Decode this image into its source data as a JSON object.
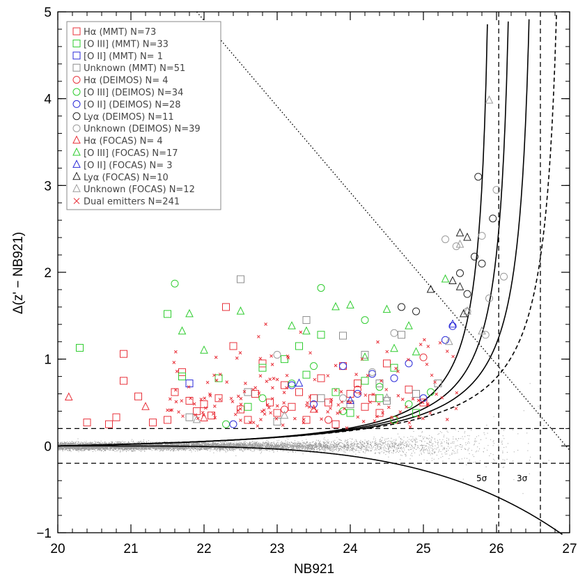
{
  "chart_data": {
    "type": "scatter",
    "xlabel": "NB921",
    "ylabel": "Δ(z' − NB921)",
    "xlim": [
      20,
      27
    ],
    "ylim": [
      -1,
      5
    ],
    "xticks": [
      "20",
      "21",
      "22",
      "23",
      "24",
      "25",
      "26",
      "27"
    ],
    "yticks": [
      "−1",
      "0",
      "1",
      "2",
      "3",
      "4",
      "5"
    ],
    "xtick_values": [
      20,
      21,
      22,
      23,
      24,
      25,
      26,
      27
    ],
    "ytick_values": [
      -1,
      0,
      1,
      2,
      3,
      4,
      5
    ],
    "legend_position": "top-left",
    "legend": [
      {
        "label": "Hα (MMT) N=73",
        "marker": "square",
        "color": "#e8313a"
      },
      {
        "label": "[O III] (MMT) N=33",
        "marker": "square",
        "color": "#2ecc2e"
      },
      {
        "label": "[O II] (MMT) N= 1",
        "marker": "square",
        "color": "#2a2ad8"
      },
      {
        "label": "Unknown (MMT) N=51",
        "marker": "square",
        "color": "#8c8c8c"
      },
      {
        "label": "Hα (DEIMOS) N= 4",
        "marker": "circle",
        "color": "#e8313a"
      },
      {
        "label": "[O III] (DEIMOS) N=34",
        "marker": "circle",
        "color": "#2ecc2e"
      },
      {
        "label": "[O II] (DEIMOS) N=28",
        "marker": "circle",
        "color": "#2a2ad8"
      },
      {
        "label": "Lyα (DEIMOS) N=11",
        "marker": "circle",
        "color": "#222222"
      },
      {
        "label": "Unknown (DEIMOS) N=39",
        "marker": "circle",
        "color": "#9a9a9a"
      },
      {
        "label": "Hα (FOCAS) N= 4",
        "marker": "triangle",
        "color": "#e8313a"
      },
      {
        "label": "[O III] (FOCAS) N=17",
        "marker": "triangle",
        "color": "#2ecc2e"
      },
      {
        "label": "[O II] (FOCAS) N= 3",
        "marker": "triangle",
        "color": "#2a2ad8"
      },
      {
        "label": "Lyα (FOCAS) N=10",
        "marker": "triangle",
        "color": "#222222"
      },
      {
        "label": "Unknown (FOCAS) N=12",
        "marker": "triangle",
        "color": "#9a9a9a"
      },
      {
        "label": "Dual emitters N=241",
        "marker": "cross",
        "color": "#e8313a"
      }
    ],
    "reference_lines": {
      "horizontal_dashed": [
        0.2,
        -0.2
      ],
      "vertical_dashed": [
        26.03,
        26.6
      ],
      "sigma_labels": [
        "5σ",
        "3σ"
      ]
    },
    "series": [
      {
        "marker": "square",
        "color": "#e8313a",
        "points": [
          [
            20.4,
            0.27
          ],
          [
            20.7,
            0.25
          ],
          [
            20.8,
            0.33
          ],
          [
            20.9,
            1.06
          ],
          [
            20.9,
            0.75
          ],
          [
            21.1,
            0.57
          ],
          [
            21.3,
            0.27
          ],
          [
            21.5,
            0.3
          ],
          [
            21.6,
            0.62
          ],
          [
            21.7,
            0.85
          ],
          [
            21.8,
            0.52
          ],
          [
            21.9,
            0.4
          ],
          [
            22.0,
            0.48
          ],
          [
            22.1,
            0.35
          ],
          [
            22.2,
            0.55
          ],
          [
            22.3,
            1.6
          ],
          [
            22.4,
            1.15
          ],
          [
            22.5,
            0.42
          ],
          [
            22.6,
            0.3
          ],
          [
            22.7,
            0.6
          ],
          [
            22.8,
            0.95
          ],
          [
            22.9,
            0.5
          ],
          [
            23.0,
            0.38
          ],
          [
            23.1,
            0.7
          ],
          [
            23.2,
            0.45
          ],
          [
            23.3,
            0.62
          ],
          [
            23.4,
            0.3
          ],
          [
            23.5,
            0.55
          ],
          [
            23.6,
            0.78
          ],
          [
            23.7,
            0.5
          ],
          [
            23.8,
            0.25
          ],
          [
            23.9,
            0.92
          ],
          [
            24.0,
            0.6
          ],
          [
            24.1,
            0.72
          ],
          [
            24.2,
            0.45
          ],
          [
            24.3,
            0.55
          ],
          [
            24.4,
            0.38
          ],
          [
            24.5,
            0.95
          ],
          [
            24.6,
            0.3
          ],
          [
            24.8,
            0.65
          ],
          [
            25.0,
            0.5
          ]
        ]
      },
      {
        "marker": "square",
        "color": "#2ecc2e",
        "points": [
          [
            20.3,
            1.13
          ],
          [
            21.5,
            1.52
          ],
          [
            21.7,
            0.8
          ],
          [
            22.2,
            0.78
          ],
          [
            22.6,
            0.45
          ],
          [
            22.8,
            0.9
          ],
          [
            23.1,
            1.0
          ],
          [
            23.3,
            1.15
          ],
          [
            23.4,
            0.82
          ],
          [
            23.6,
            1.28
          ],
          [
            23.8,
            0.62
          ],
          [
            24.0,
            0.38
          ],
          [
            24.2,
            0.75
          ],
          [
            24.4,
            0.55
          ],
          [
            24.6,
            0.9
          ],
          [
            24.9,
            0.38
          ]
        ]
      },
      {
        "marker": "square",
        "color": "#2a2ad8",
        "points": [
          [
            21.8,
            0.72
          ]
        ]
      },
      {
        "marker": "square",
        "color": "#8c8c8c",
        "points": [
          [
            22.5,
            1.92
          ],
          [
            21.8,
            0.33
          ],
          [
            22.6,
            0.62
          ],
          [
            23.0,
            0.28
          ],
          [
            23.4,
            1.45
          ],
          [
            23.6,
            0.55
          ],
          [
            23.9,
            1.27
          ],
          [
            24.0,
            0.48
          ],
          [
            24.2,
            1.05
          ],
          [
            24.4,
            0.72
          ],
          [
            24.5,
            0.52
          ],
          [
            24.7,
            1.28
          ],
          [
            24.9,
            0.6
          ],
          [
            25.2,
            0.72
          ]
        ]
      },
      {
        "marker": "circle",
        "color": "#e8313a",
        "points": [
          [
            23.1,
            0.42
          ],
          [
            23.7,
            0.3
          ],
          [
            24.1,
            0.65
          ],
          [
            25.0,
            1.02
          ]
        ]
      },
      {
        "marker": "circle",
        "color": "#2ecc2e",
        "points": [
          [
            21.6,
            1.87
          ],
          [
            22.3,
            0.25
          ],
          [
            22.8,
            0.55
          ],
          [
            23.2,
            0.72
          ],
          [
            23.5,
            0.92
          ],
          [
            23.6,
            1.82
          ],
          [
            23.9,
            0.4
          ],
          [
            24.2,
            1.45
          ],
          [
            24.4,
            0.68
          ],
          [
            24.6,
            0.3
          ],
          [
            24.8,
            0.48
          ],
          [
            25.1,
            0.62
          ]
        ]
      },
      {
        "marker": "circle",
        "color": "#2a2ad8",
        "points": [
          [
            22.4,
            0.25
          ],
          [
            23.2,
            0.7
          ],
          [
            23.5,
            0.48
          ],
          [
            23.9,
            0.92
          ],
          [
            24.1,
            0.6
          ],
          [
            24.3,
            0.83
          ],
          [
            24.6,
            0.78
          ],
          [
            24.8,
            0.95
          ],
          [
            25.0,
            0.55
          ],
          [
            25.3,
            1.22
          ],
          [
            25.4,
            1.38
          ]
        ]
      },
      {
        "marker": "circle",
        "color": "#222222",
        "points": [
          [
            24.7,
            1.6
          ],
          [
            24.9,
            1.55
          ],
          [
            25.5,
            1.99
          ],
          [
            25.6,
            1.75
          ],
          [
            25.7,
            2.18
          ],
          [
            25.75,
            3.1
          ],
          [
            25.95,
            2.62
          ],
          [
            25.8,
            2.1
          ]
        ]
      },
      {
        "marker": "circle",
        "color": "#9a9a9a",
        "points": [
          [
            23.0,
            1.05
          ],
          [
            23.9,
            0.55
          ],
          [
            24.3,
            0.85
          ],
          [
            24.6,
            1.3
          ],
          [
            25.3,
            2.38
          ],
          [
            25.45,
            2.3
          ],
          [
            25.6,
            1.55
          ],
          [
            25.8,
            2.42
          ],
          [
            25.9,
            1.7
          ],
          [
            26.0,
            2.95
          ],
          [
            26.1,
            1.95
          ],
          [
            25.85,
            1.28
          ]
        ]
      },
      {
        "marker": "triangle",
        "color": "#e8313a",
        "points": [
          [
            20.15,
            0.56
          ],
          [
            21.2,
            0.45
          ],
          [
            22.0,
            0.32
          ],
          [
            23.5,
            0.42
          ]
        ]
      },
      {
        "marker": "triangle",
        "color": "#2ecc2e",
        "points": [
          [
            21.7,
            1.32
          ],
          [
            21.8,
            1.52
          ],
          [
            22.0,
            1.1
          ],
          [
            22.5,
            1.55
          ],
          [
            23.2,
            1.38
          ],
          [
            23.4,
            1.32
          ],
          [
            23.8,
            1.6
          ],
          [
            24.0,
            1.62
          ],
          [
            24.2,
            1.02
          ],
          [
            24.5,
            1.57
          ],
          [
            24.6,
            1.12
          ],
          [
            24.8,
            1.38
          ],
          [
            24.9,
            1.08
          ],
          [
            25.3,
            1.92
          ]
        ]
      },
      {
        "marker": "triangle",
        "color": "#2a2ad8",
        "points": [
          [
            23.3,
            0.72
          ],
          [
            24.0,
            0.52
          ],
          [
            25.4,
            1.4
          ]
        ]
      },
      {
        "marker": "triangle",
        "color": "#222222",
        "points": [
          [
            25.1,
            1.8
          ],
          [
            25.4,
            1.9
          ],
          [
            25.5,
            2.45
          ],
          [
            25.55,
            1.52
          ],
          [
            25.6,
            2.4
          ],
          [
            25.5,
            1.83
          ]
        ]
      },
      {
        "marker": "triangle",
        "color": "#9a9a9a",
        "points": [
          [
            21.9,
            0.3
          ],
          [
            23.1,
            0.35
          ],
          [
            24.5,
            0.55
          ],
          [
            25.35,
            1.2
          ],
          [
            25.5,
            2.32
          ],
          [
            25.9,
            3.98
          ],
          [
            25.6,
            1.55
          ],
          [
            25.8,
            1.32
          ]
        ]
      }
    ]
  }
}
